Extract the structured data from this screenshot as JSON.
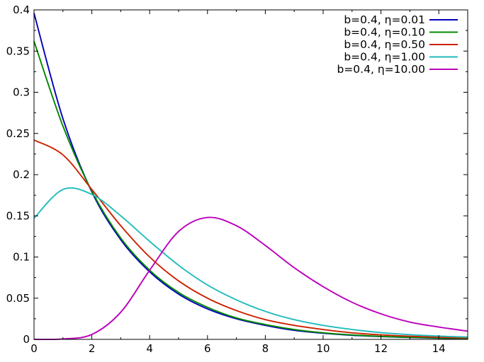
{
  "chart_data": {
    "type": "line",
    "title": "",
    "xlabel": "",
    "ylabel": "",
    "xlim": [
      0,
      15
    ],
    "ylim": [
      0,
      0.4
    ],
    "x_ticks": [
      0,
      2,
      4,
      6,
      8,
      10,
      12,
      14
    ],
    "x_tick_labels": [
      "0",
      "2",
      "4",
      "6",
      "8",
      "10",
      "12",
      "14"
    ],
    "y_ticks": [
      0,
      0.05,
      0.1,
      0.15,
      0.2,
      0.25,
      0.3,
      0.35,
      0.4
    ],
    "y_tick_labels": [
      "0",
      "0.05",
      "0.1",
      "0.15",
      "0.2",
      "0.25",
      "0.3",
      "0.35",
      "0.4"
    ],
    "grid": false,
    "legend_position": "top-right",
    "x": [
      0,
      1,
      2,
      3,
      4,
      5,
      6,
      7,
      8,
      9,
      10,
      11,
      12,
      13,
      14,
      15
    ],
    "series": [
      {
        "name": "b=0.4, η=0.01",
        "color": "#0000bb",
        "values": [
          0.396,
          0.268,
          0.179,
          0.121,
          0.082,
          0.055,
          0.037,
          0.025,
          0.017,
          0.011,
          0.0075,
          0.005,
          0.0034,
          0.0023,
          0.0015,
          0.001
        ]
      },
      {
        "name": "b=0.4, η=0.10",
        "color": "#008800",
        "values": [
          0.362,
          0.259,
          0.18,
          0.123,
          0.084,
          0.057,
          0.039,
          0.026,
          0.018,
          0.012,
          0.008,
          0.0054,
          0.0036,
          0.0025,
          0.0017,
          0.0011
        ]
      },
      {
        "name": "b=0.4, η=0.50",
        "color": "#cc2200",
        "values": [
          0.242,
          0.224,
          0.182,
          0.138,
          0.1,
          0.071,
          0.05,
          0.035,
          0.024,
          0.017,
          0.012,
          0.008,
          0.0055,
          0.0038,
          0.0026,
          0.0018
        ]
      },
      {
        "name": "b=0.4, η=1.00",
        "color": "#22bbbb",
        "values": [
          0.147,
          0.182,
          0.176,
          0.15,
          0.119,
          0.09,
          0.066,
          0.048,
          0.034,
          0.024,
          0.017,
          0.012,
          0.0082,
          0.0057,
          0.004,
          0.0028
        ]
      },
      {
        "name": "b=0.4, η=10.00",
        "color": "#bb00bb",
        "values": [
          0.0,
          0.0005,
          0.006,
          0.033,
          0.084,
          0.131,
          0.148,
          0.138,
          0.114,
          0.087,
          0.064,
          0.045,
          0.031,
          0.021,
          0.015,
          0.01
        ]
      }
    ]
  }
}
